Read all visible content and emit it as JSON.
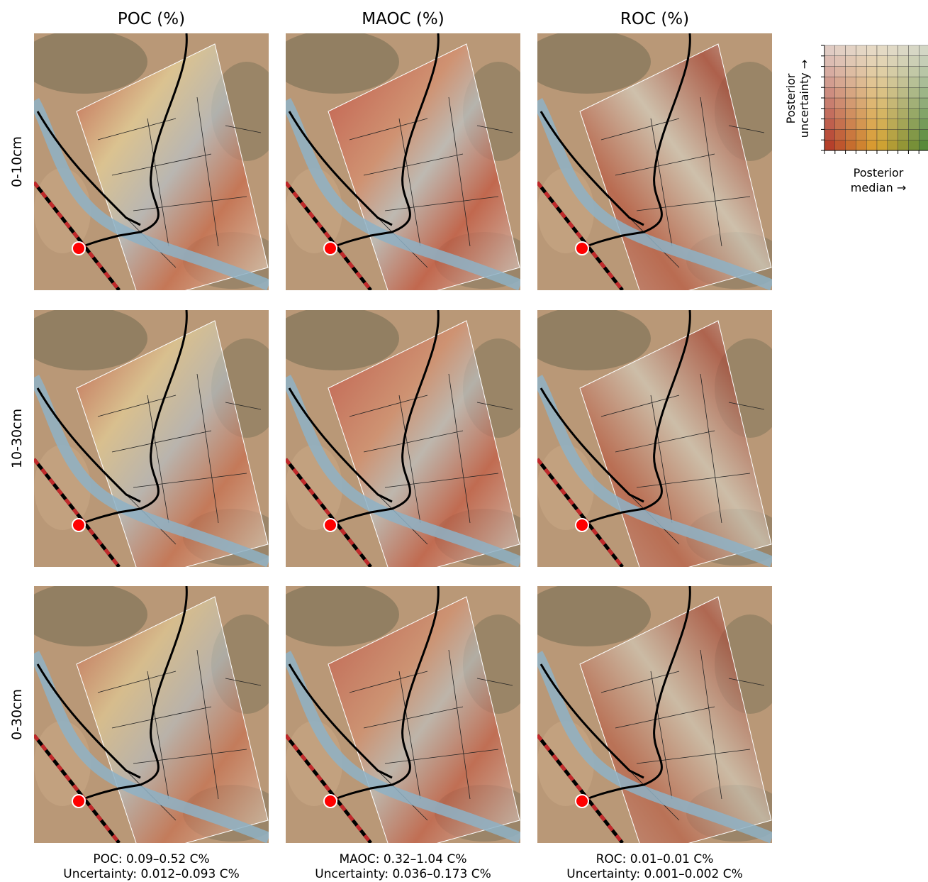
{
  "columns": [
    "POC (%)",
    "MAOC (%)",
    "ROC (%)"
  ],
  "rows": [
    "0-10cm",
    "10-30cm",
    "0-30cm"
  ],
  "legend": {
    "y_label": [
      "Posterior",
      "uncertainty →"
    ],
    "x_label": [
      "Posterior",
      "median →"
    ]
  },
  "captions": [
    {
      "line1": "POC: 0.09–0.52 C%",
      "line2": "Uncertainty: 0.012–0.093 C%"
    },
    {
      "line1": "MAOC: 0.32–1.04 C%",
      "line2": "Uncertainty: 0.036–0.173 C%"
    },
    {
      "line1": "ROC: 0.01–0.01 C%",
      "line2": "Uncertainty: 0.001–0.002 C%"
    }
  ]
}
